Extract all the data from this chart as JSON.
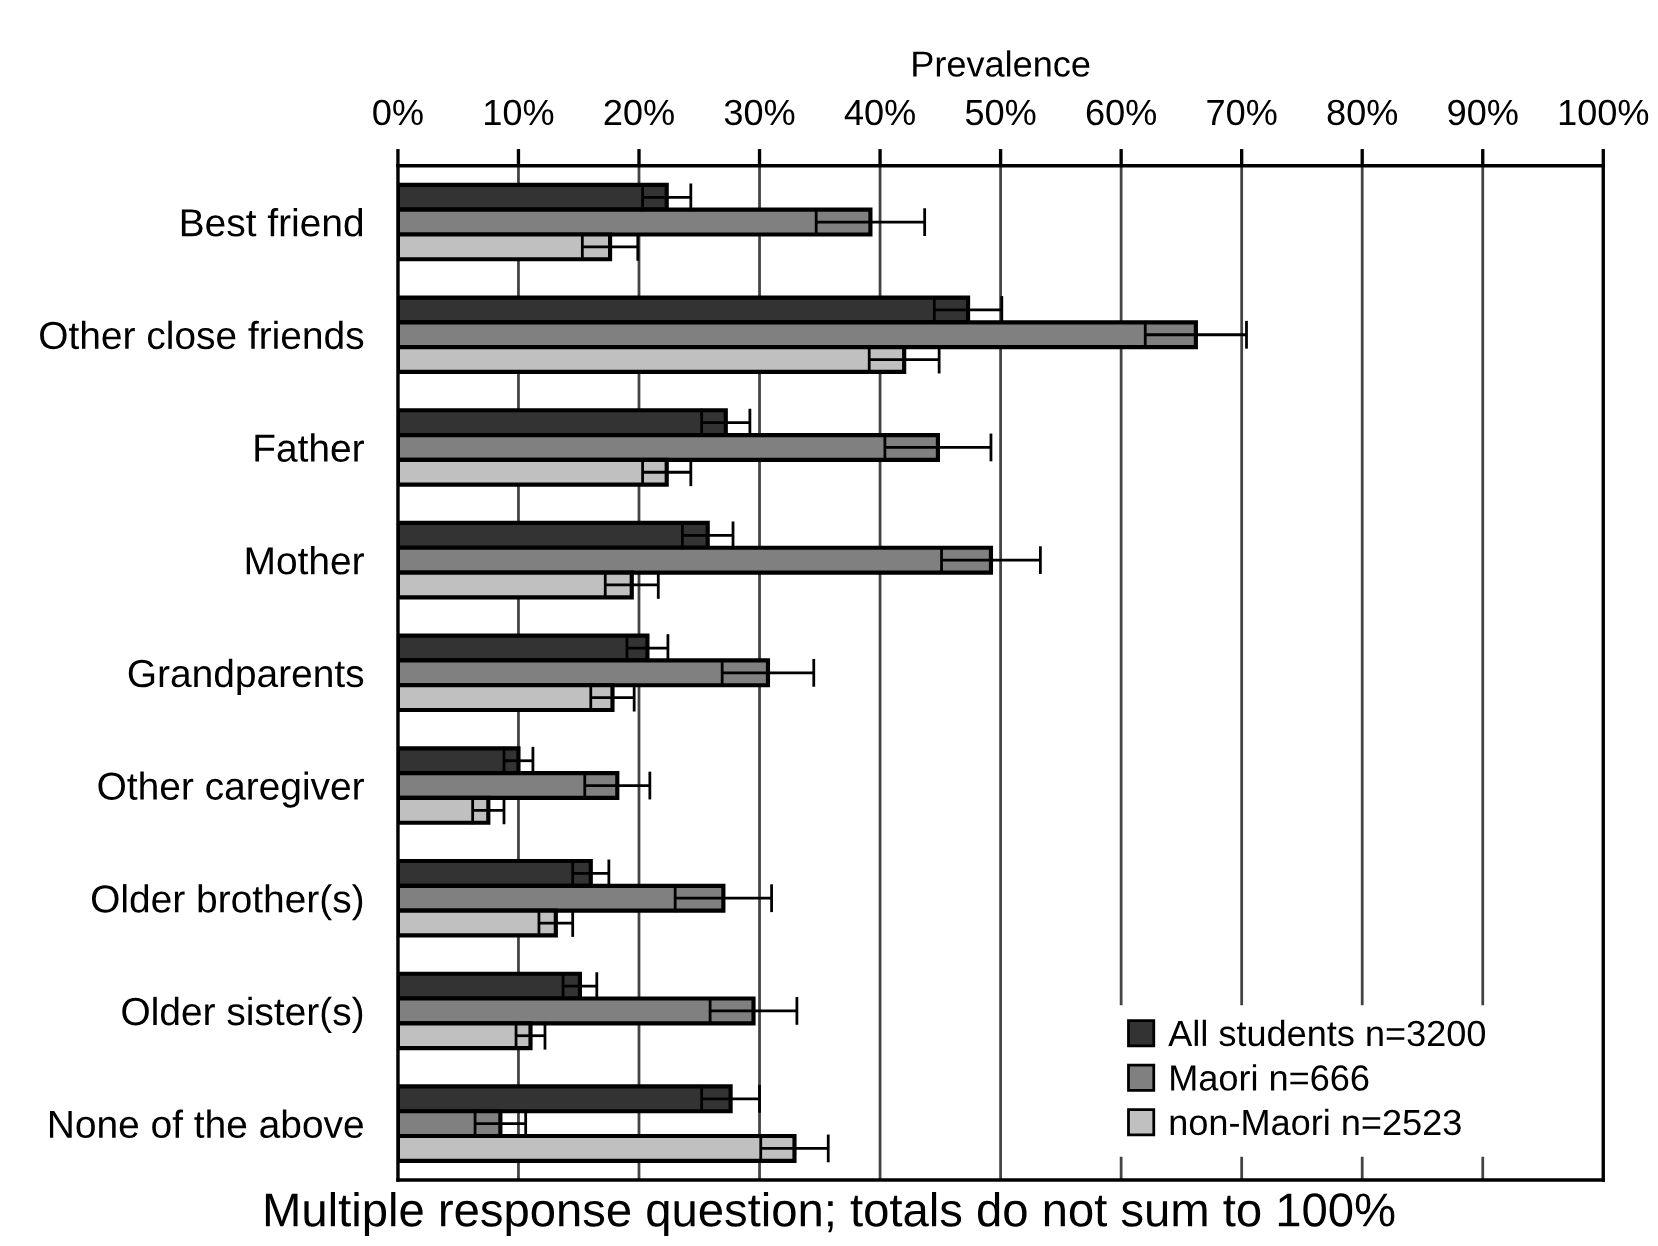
{
  "chart_data": {
    "type": "bar",
    "orientation": "horizontal",
    "xlabel": "Prevalence",
    "categories": [
      "Best friend",
      "Other close friends",
      "Father",
      "Mother",
      "Grandparents",
      "Other caregiver",
      "Older brother(s)",
      "Older sister(s)",
      "None of the above"
    ],
    "series": [
      {
        "name": "All students n=3200",
        "color": "#333333",
        "values": [
          22.3,
          47.3,
          27.2,
          25.7,
          20.7,
          10.0,
          16.0,
          15.1,
          27.6
        ],
        "errors": [
          2.0,
          2.8,
          2.0,
          2.1,
          1.7,
          1.2,
          1.5,
          1.4,
          2.4
        ]
      },
      {
        "name": "Maori n=666",
        "color": "#808080",
        "values": [
          39.2,
          66.2,
          44.8,
          49.2,
          30.7,
          18.2,
          27.0,
          29.5,
          8.5
        ],
        "errors": [
          4.5,
          4.2,
          4.4,
          4.1,
          3.8,
          2.7,
          4.0,
          3.6,
          2.1
        ]
      },
      {
        "name": "non-Maori n=2523",
        "color": "#c0c0c0",
        "values": [
          17.6,
          42.0,
          22.3,
          19.4,
          17.8,
          7.5,
          13.1,
          11.0,
          32.9
        ],
        "errors": [
          2.3,
          2.9,
          2.0,
          2.2,
          1.8,
          1.3,
          1.4,
          1.2,
          2.8
        ]
      }
    ],
    "xlim": [
      0,
      100
    ],
    "xticks": [
      {
        "value": 0,
        "label": "0%"
      },
      {
        "value": 10,
        "label": "10%"
      },
      {
        "value": 20,
        "label": "20%"
      },
      {
        "value": 30,
        "label": "30%"
      },
      {
        "value": 40,
        "label": "40%"
      },
      {
        "value": 50,
        "label": "50%"
      },
      {
        "value": 60,
        "label": "60%"
      },
      {
        "value": 70,
        "label": "70%"
      },
      {
        "value": 80,
        "label": "80%"
      },
      {
        "value": 90,
        "label": "90%"
      },
      {
        "value": 100,
        "label": "100%"
      }
    ],
    "grid": "x",
    "legend": "bottom right",
    "annotations": [
      "Multiple response question; totals do not sum to 100%"
    ]
  }
}
